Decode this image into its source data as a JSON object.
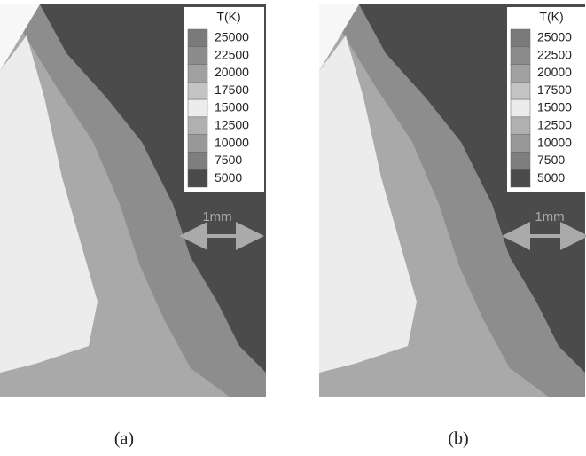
{
  "panels": [
    {
      "label": "(a)",
      "legend_title": "T(K)",
      "legend_levels": [
        25000,
        22500,
        20000,
        17500,
        15000,
        12500,
        10000,
        7500,
        5000
      ],
      "scale_label": "1mm"
    },
    {
      "label": "(b)",
      "legend_title": "T(K)",
      "legend_levels": [
        25000,
        22500,
        20000,
        17500,
        15000,
        12500,
        10000,
        7500,
        5000
      ],
      "scale_label": "1mm"
    }
  ]
}
